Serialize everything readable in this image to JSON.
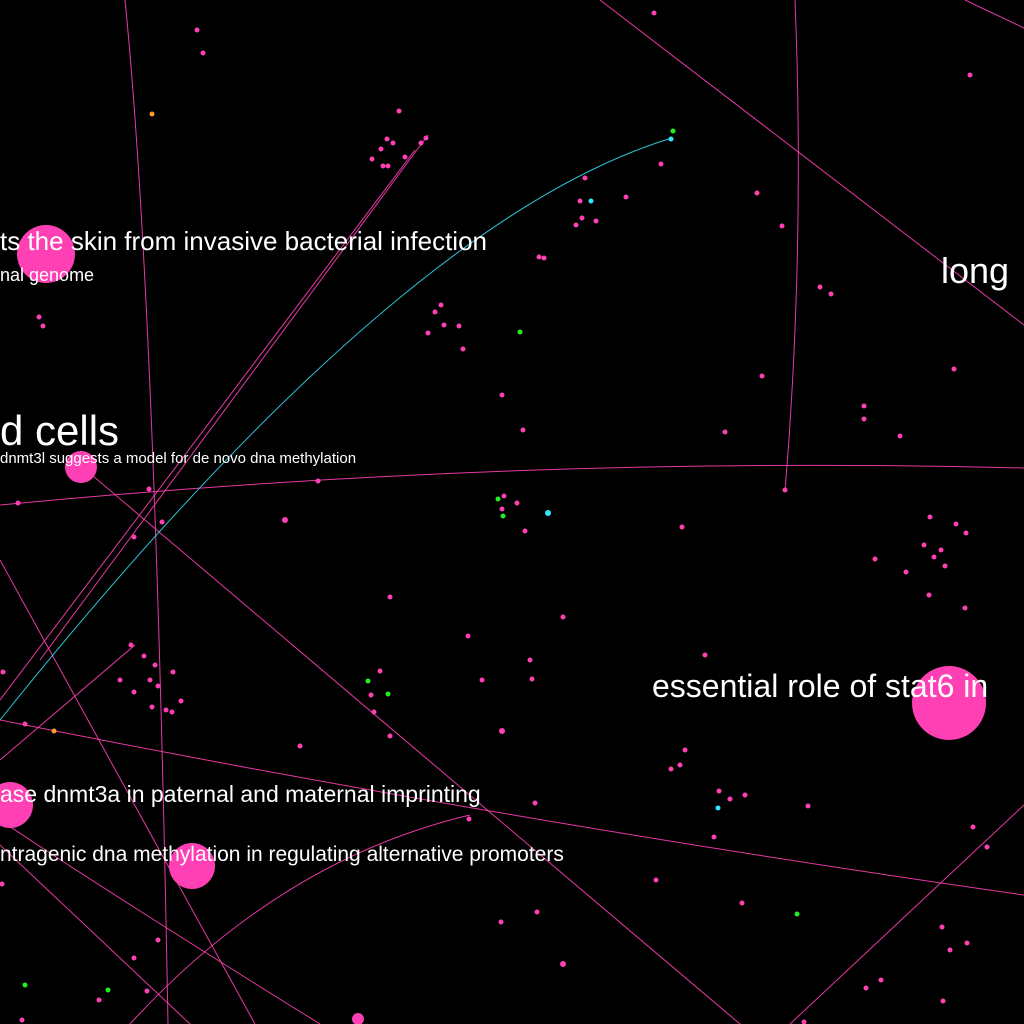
{
  "view": {
    "background": "#000000"
  },
  "palette": {
    "pink": "#ff3fb4",
    "cyan": "#33e6ff",
    "green": "#22ee22",
    "orange": "#ff9a2e",
    "label": "#ffffff"
  },
  "labels": [
    {
      "id": "skin",
      "text": "ts the skin from invasive bacterial infection"
    },
    {
      "id": "genome",
      "text": "nal genome"
    },
    {
      "id": "long",
      "text": "long"
    },
    {
      "id": "cells",
      "text": "d cells"
    },
    {
      "id": "dnmt3l",
      "text": "dnmt3l suggests a model for de novo dna methylation"
    },
    {
      "id": "stat6",
      "text": "essential role of stat6 in"
    },
    {
      "id": "imprinting",
      "text": "ase dnmt3a in paternal and maternal imprinting"
    },
    {
      "id": "promoters",
      "text": "ntragenic dna methylation in regulating alternative promoters"
    }
  ]
}
